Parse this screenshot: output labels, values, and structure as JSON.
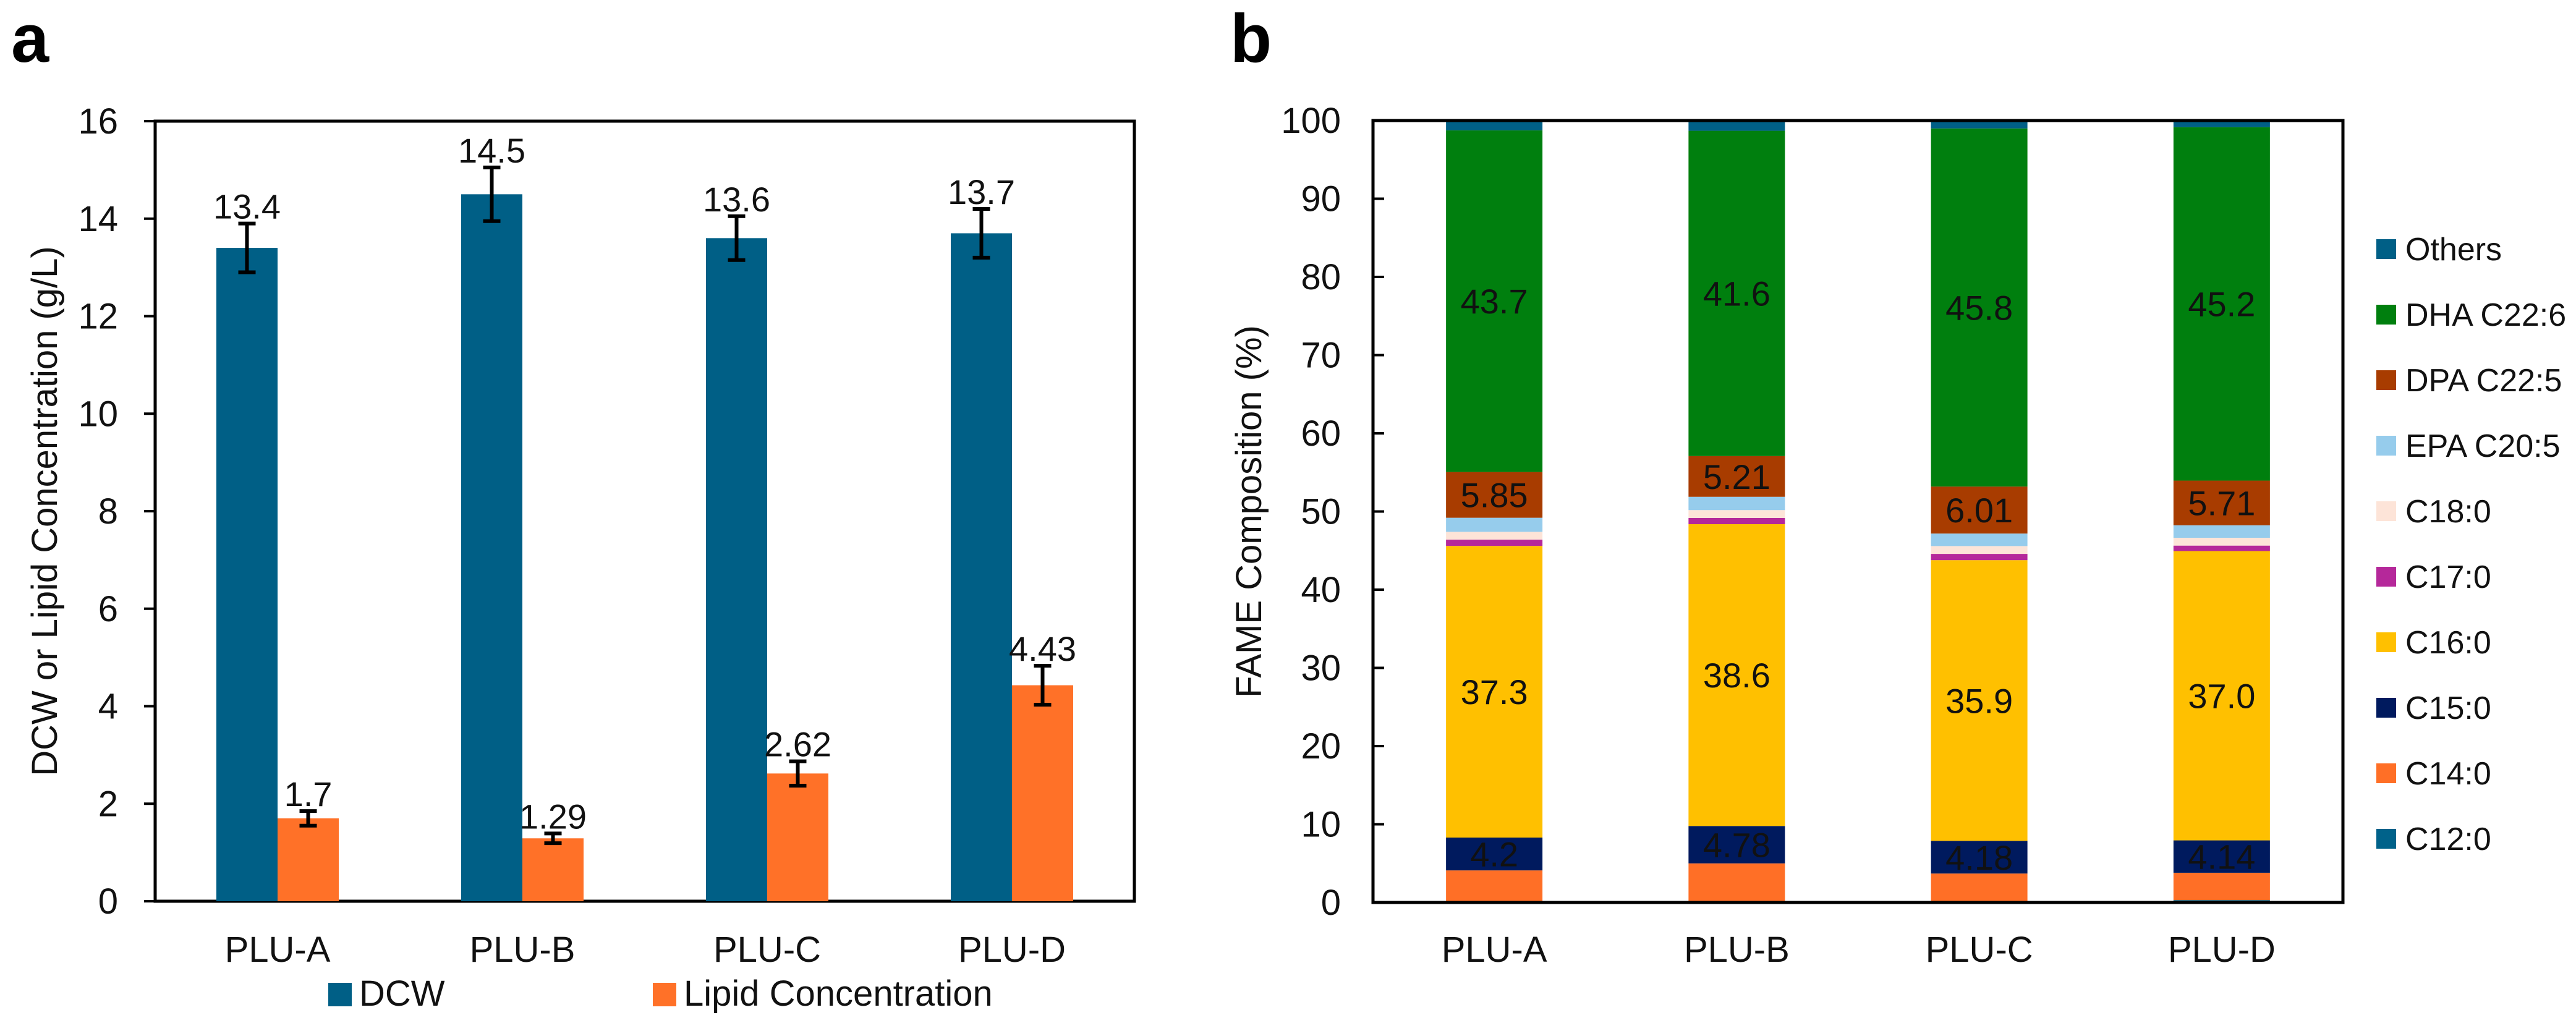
{
  "chart_data": [
    {
      "panel_label": "a",
      "type": "bar",
      "categories": [
        "PLU-A",
        "PLU-B",
        "PLU-C",
        "PLU-D"
      ],
      "ylabel": "DCW or Lipid Concentration (g/L)",
      "xlabel": "",
      "ylim": [
        0,
        16
      ],
      "yticks": [
        0,
        2,
        4,
        6,
        8,
        10,
        12,
        14,
        16
      ],
      "grid": false,
      "legend_position": "bottom",
      "series": [
        {
          "name": "DCW",
          "color": "#005F86",
          "values": [
            13.4,
            14.5,
            13.6,
            13.7
          ],
          "errors": [
            0.5,
            0.55,
            0.45,
            0.5
          ],
          "labels": [
            "13.4",
            "14.5",
            "13.6",
            "13.7"
          ]
        },
        {
          "name": "Lipid Concentration",
          "color": "#FF7128",
          "values": [
            1.7,
            1.29,
            2.62,
            4.43
          ],
          "errors": [
            0.15,
            0.1,
            0.25,
            0.4
          ],
          "labels": [
            "1.7",
            "1.29",
            "2.62",
            "4.43"
          ]
        }
      ]
    },
    {
      "panel_label": "b",
      "type": "bar",
      "stacked": true,
      "categories": [
        "PLU-A",
        "PLU-B",
        "PLU-C",
        "PLU-D"
      ],
      "ylabel": "FAME Composition (%)",
      "xlabel": "",
      "ylim": [
        0,
        100
      ],
      "yticks": [
        0,
        10,
        20,
        30,
        40,
        50,
        60,
        70,
        80,
        90,
        100
      ],
      "grid": false,
      "legend_position": "right",
      "series": [
        {
          "name": "C12:0",
          "color": "#00628A",
          "values": [
            0.1,
            0.2,
            0.1,
            0.3
          ]
        },
        {
          "name": "C14:0",
          "color": "#FF6F26",
          "values": [
            4.0,
            4.8,
            3.6,
            3.5
          ]
        },
        {
          "name": "C15:0",
          "color": "#001A5E",
          "values": [
            4.2,
            4.78,
            4.18,
            4.14
          ],
          "labels": [
            "4.2",
            "4.78",
            "4.18",
            "4.14"
          ],
          "label_color": "#ffffff"
        },
        {
          "name": "C16:0",
          "color": "#FFC000",
          "values": [
            37.3,
            38.6,
            35.9,
            37.0
          ],
          "labels": [
            "37.3",
            "38.6",
            "35.9",
            "37.0"
          ],
          "label_color": "#000000"
        },
        {
          "name": "C17:0",
          "color": "#B5289A",
          "values": [
            0.8,
            0.8,
            0.8,
            0.7
          ]
        },
        {
          "name": "C18:0",
          "color": "#FDE4D8",
          "values": [
            1.0,
            1.0,
            1.0,
            1.0
          ]
        },
        {
          "name": "EPA C20:5",
          "color": "#96CCEC",
          "values": [
            1.8,
            1.7,
            1.6,
            1.6
          ]
        },
        {
          "name": "DPA C22:5",
          "color": "#A83C00",
          "values": [
            5.85,
            5.21,
            6.01,
            5.71
          ],
          "labels": [
            "5.85",
            "5.21",
            "6.01",
            "5.71"
          ],
          "label_color": "#ffffff"
        },
        {
          "name": "DHA C22:6",
          "color": "#007F0E",
          "values": [
            43.7,
            41.6,
            45.8,
            45.2
          ],
          "labels": [
            "43.7",
            "41.6",
            "45.8",
            "45.2"
          ],
          "label_color": "#ffffff"
        },
        {
          "name": "Others",
          "color": "#005F86",
          "values": [
            1.25,
            1.3,
            1.0,
            0.9
          ]
        }
      ],
      "legend_order": [
        "Others",
        "DHA C22:6",
        "DPA C22:5",
        "EPA C20:5",
        "C18:0",
        "C17:0",
        "C16:0",
        "C15:0",
        "C14:0",
        "C12:0"
      ]
    }
  ]
}
